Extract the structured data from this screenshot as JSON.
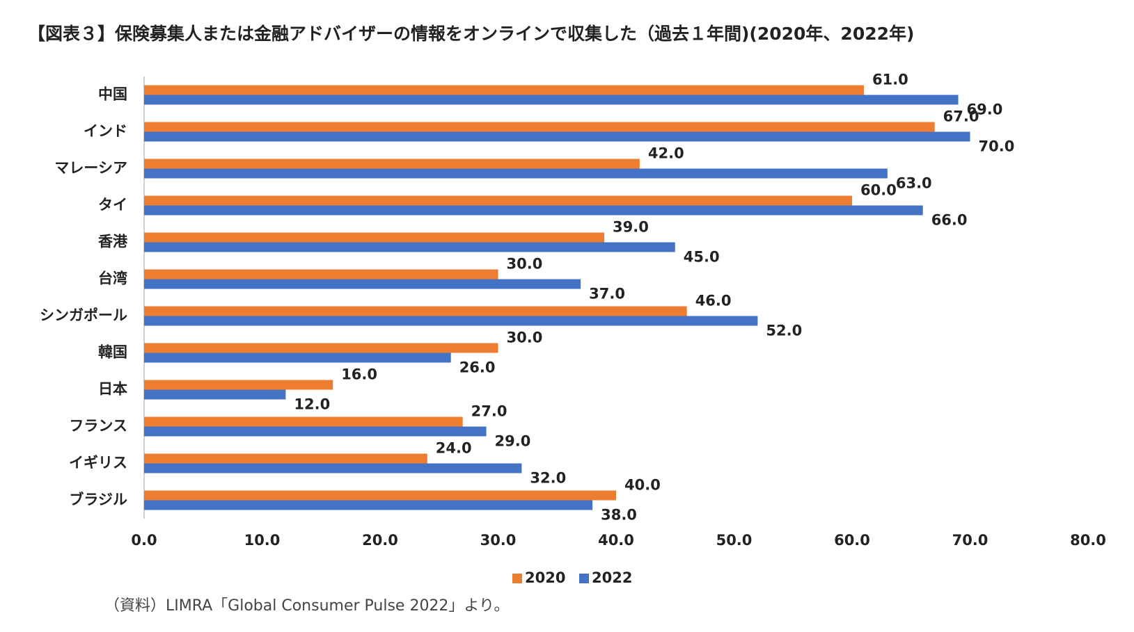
{
  "chart_data": {
    "type": "hbar",
    "title": "【図表３】保険募集人または金融アドバイザーの情報をオンラインで収集した（過去１年間)(2020年、2022年)",
    "source": "（資料）LIMRA「Global Consumer Pulse 2022」より。",
    "categories": [
      "中国",
      "インド",
      "マレーシア",
      "タイ",
      "香港",
      "台湾",
      "シンガポール",
      "韓国",
      "日本",
      "フランス",
      "イギリス",
      "ブラジル"
    ],
    "series": [
      {
        "name": "2020",
        "color": "#ed7d31",
        "values": [
          61,
          67,
          42,
          60,
          39,
          30,
          46,
          30,
          16,
          27,
          24,
          40
        ],
        "value_labels": [
          "61.0",
          "67.0",
          "42.0",
          "60.0",
          "39.0",
          "30.0",
          "46.0",
          "30.0",
          "16.0",
          "27.0",
          "24.0",
          "40.0"
        ]
      },
      {
        "name": "2022",
        "color": "#4472c4",
        "values": [
          69,
          70,
          63,
          66,
          45,
          37,
          52,
          26,
          12,
          29,
          32,
          38
        ],
        "value_labels": [
          "69.0",
          "70.0",
          "63.0",
          "66.0",
          "45.0",
          "37.0",
          "52.0",
          "26.0",
          "12.0",
          "29.0",
          "32.0",
          "38.0"
        ]
      }
    ],
    "xlim": [
      0,
      80
    ],
    "xticks": [
      {
        "value": 0,
        "label": "0.0"
      },
      {
        "value": 10,
        "label": "10.0"
      },
      {
        "value": 20,
        "label": "20.0"
      },
      {
        "value": 30,
        "label": "30.0"
      },
      {
        "value": 40,
        "label": "40.0"
      },
      {
        "value": 50,
        "label": "50.0"
      },
      {
        "value": 60,
        "label": "60.0"
      },
      {
        "value": 70,
        "label": "70.0"
      },
      {
        "value": 80,
        "label": "80.0"
      }
    ],
    "legend": "bottom"
  }
}
